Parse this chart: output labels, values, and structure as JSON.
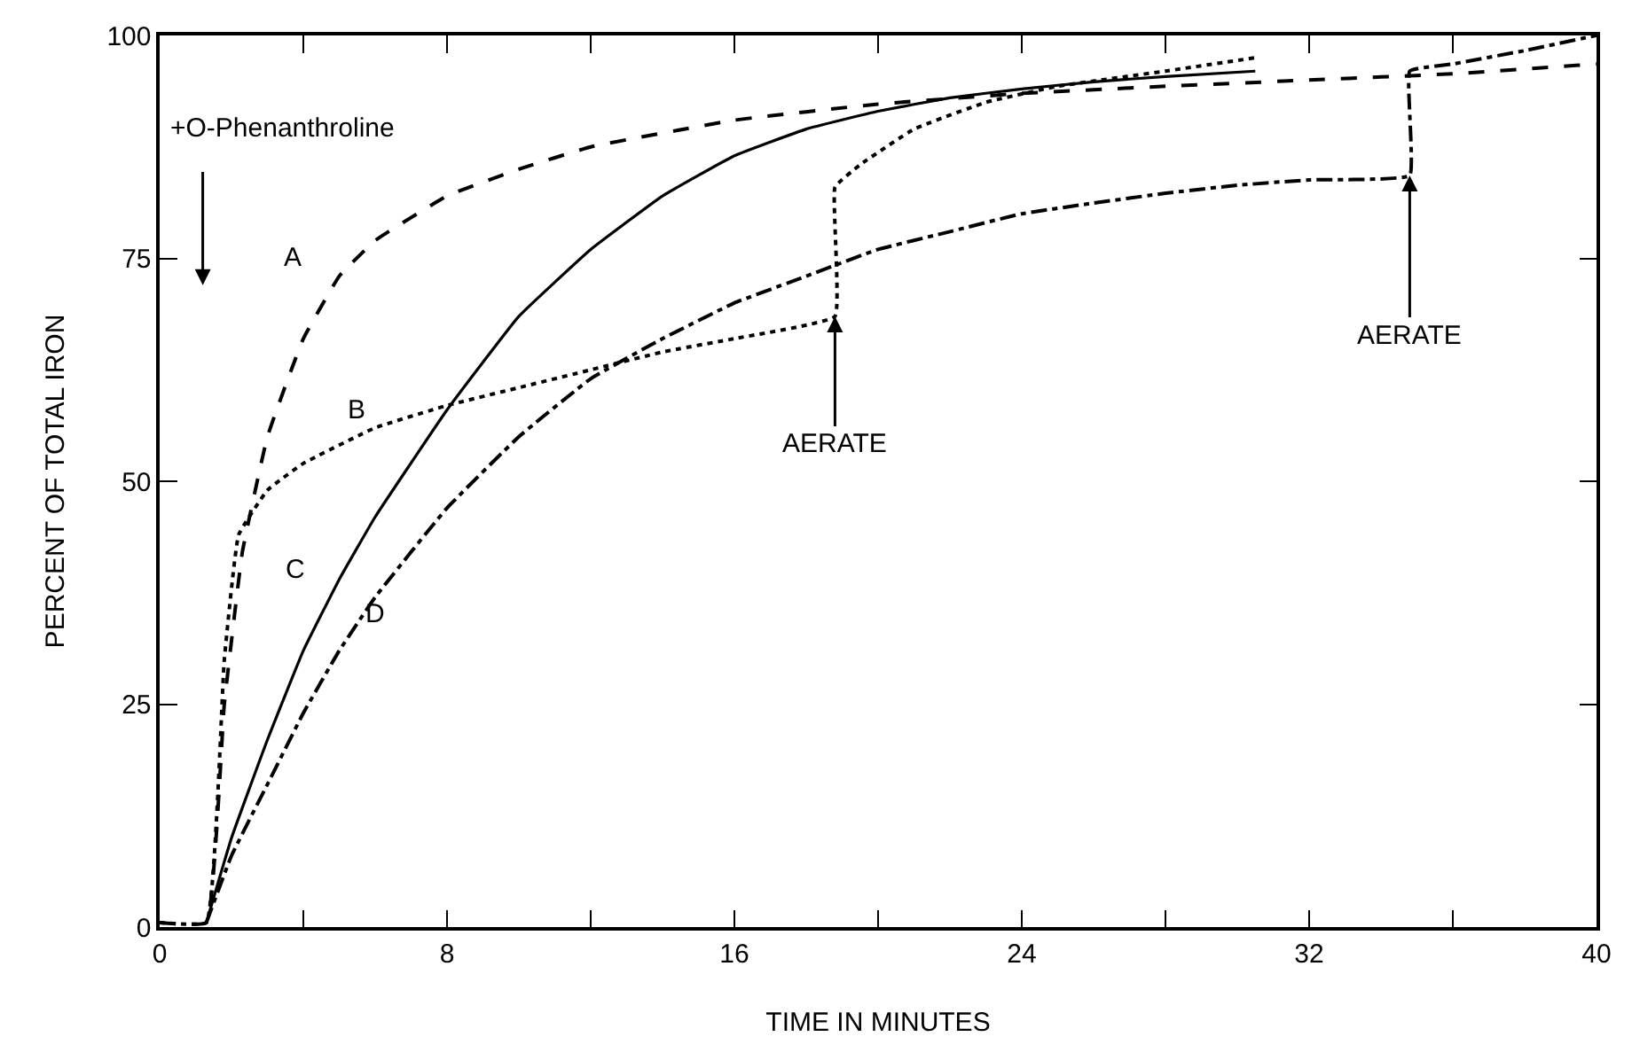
{
  "chart_data": {
    "type": "line",
    "xlabel": "TIME IN MINUTES",
    "ylabel": "PERCENT OF TOTAL IRON",
    "xlim": [
      0,
      40
    ],
    "ylim": [
      0,
      100
    ],
    "xticks": [
      0,
      {
        "value": 4,
        "label": null
      },
      8,
      {
        "value": 12,
        "label": null
      },
      16,
      {
        "value": 20,
        "label": null
      },
      24,
      {
        "value": 28,
        "label": null
      },
      32,
      {
        "value": 36,
        "label": null
      },
      40
    ],
    "yticks": [
      0,
      25,
      50,
      75,
      100
    ],
    "series": [
      {
        "name": "A",
        "color": "#000000",
        "line_style": "dashed",
        "x": [
          0,
          1.3,
          1.8,
          2.3,
          3,
          4,
          5,
          6,
          8,
          10,
          12,
          16,
          20,
          24,
          28,
          32,
          36,
          40
        ],
        "values": [
          0.5,
          0.5,
          25,
          42,
          55,
          66,
          73,
          77,
          82,
          85,
          87.5,
          90.5,
          92.3,
          93.5,
          94.3,
          95,
          95.7,
          96.8
        ]
      },
      {
        "name": "B",
        "color": "#000000",
        "line_style": "dotted",
        "x": [
          0,
          1.3,
          1.8,
          2.2,
          3,
          4,
          6,
          8,
          10,
          12,
          14,
          16,
          18.8,
          18.8,
          19.5,
          21,
          23,
          25,
          28,
          30.5
        ],
        "values": [
          0.5,
          0.5,
          30,
          44,
          49,
          52,
          56,
          58.5,
          60.5,
          62.5,
          64.5,
          66,
          68.5,
          83,
          85.5,
          89.5,
          92.5,
          94.3,
          96,
          97.5
        ]
      },
      {
        "name": "C",
        "color": "#000000",
        "line_style": "solid",
        "x": [
          1.3,
          2,
          3,
          4,
          5,
          6,
          8,
          10,
          12,
          14,
          16,
          18,
          20,
          22,
          24,
          26,
          28,
          30.5
        ],
        "values": [
          0.5,
          10,
          21,
          31,
          39,
          46,
          58,
          68.5,
          76,
          82,
          86.5,
          89.5,
          91.5,
          93,
          94,
          94.8,
          95.4,
          96
        ]
      },
      {
        "name": "D",
        "color": "#000000",
        "line_style": "dashdot",
        "x": [
          1.3,
          2,
          3,
          4,
          5,
          6,
          8,
          10,
          12,
          14,
          16,
          18,
          20,
          22,
          24,
          26,
          28,
          30,
          32,
          34.8,
          34.8,
          36,
          38,
          40
        ],
        "values": [
          0.5,
          8,
          16,
          24,
          31,
          37,
          47,
          55,
          61.5,
          66,
          70,
          73,
          76,
          78,
          80,
          81.2,
          82.3,
          83.2,
          83.8,
          84.3,
          96,
          96.8,
          98.3,
          100
        ]
      }
    ],
    "annotations": [
      "+O-Phenanthroline",
      {
        "text": "AERATE",
        "x": 18.8,
        "y": 68.5
      },
      {
        "text": "AERATE",
        "x": 34.8,
        "y": 84.3
      }
    ]
  }
}
